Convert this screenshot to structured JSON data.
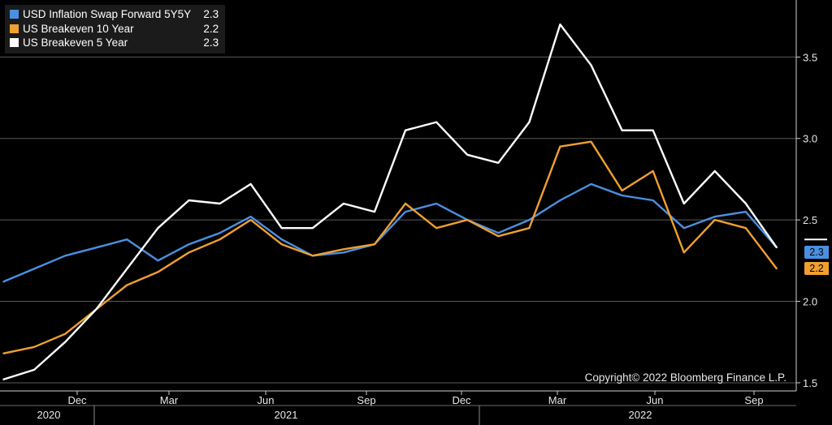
{
  "chart_data": {
    "type": "line",
    "y_axis_side": "right",
    "ylim": [
      1.45,
      3.85
    ],
    "yticks": [
      "1.5",
      "2.0",
      "2.5",
      "3.0",
      "3.5"
    ],
    "grid": true,
    "legend_position": "top-left",
    "x_month_labels": [
      "Dec",
      "Mar",
      "Jun",
      "Sep",
      "Dec",
      "Mar",
      "Jun",
      "Sep"
    ],
    "x_year_labels": [
      "2020",
      "2021",
      "2022"
    ],
    "x": [
      "2020-09",
      "2020-10",
      "2020-11",
      "2020-12",
      "2021-01",
      "2021-02",
      "2021-03",
      "2021-04",
      "2021-05",
      "2021-06",
      "2021-07",
      "2021-08",
      "2021-09",
      "2021-10",
      "2021-11",
      "2021-12",
      "2022-01",
      "2022-02",
      "2022-03",
      "2022-04",
      "2022-05",
      "2022-06",
      "2022-07",
      "2022-08",
      "2022-09",
      "2022-10"
    ],
    "series": [
      {
        "name": "USD Inflation Swap Forward 5Y5Y",
        "color": "#4a90e2",
        "last_value": "2.3",
        "values": [
          2.12,
          2.2,
          2.28,
          2.33,
          2.38,
          2.25,
          2.35,
          2.42,
          2.52,
          2.38,
          2.28,
          2.3,
          2.35,
          2.55,
          2.6,
          2.5,
          2.42,
          2.5,
          2.62,
          2.72,
          2.65,
          2.62,
          2.45,
          2.52,
          2.55,
          2.33
        ]
      },
      {
        "name": "US Breakeven 10 Year",
        "color": "#f0a030",
        "last_value": "2.2",
        "values": [
          1.68,
          1.72,
          1.8,
          1.95,
          2.1,
          2.18,
          2.3,
          2.38,
          2.5,
          2.35,
          2.28,
          2.32,
          2.35,
          2.6,
          2.45,
          2.5,
          2.4,
          2.45,
          2.95,
          2.98,
          2.68,
          2.8,
          2.3,
          2.5,
          2.45,
          2.2
        ]
      },
      {
        "name": "US Breakeven 5 Year",
        "color": "#ffffff",
        "last_value": "2.3",
        "values": [
          1.52,
          1.58,
          1.75,
          1.95,
          2.2,
          2.45,
          2.62,
          2.6,
          2.72,
          2.45,
          2.45,
          2.6,
          2.55,
          3.05,
          3.1,
          2.9,
          2.85,
          3.1,
          3.7,
          3.45,
          3.05,
          3.05,
          2.6,
          2.8,
          2.6,
          2.33
        ]
      }
    ]
  },
  "legend": {
    "items": [
      {
        "name": "USD Inflation Swap Forward 5Y5Y",
        "value": "2.3"
      },
      {
        "name": "US Breakeven 10 Year",
        "value": "2.2"
      },
      {
        "name": "US Breakeven 5 Year",
        "value": "2.3"
      }
    ]
  },
  "copyright": "Copyright© 2022 Bloomberg Finance L.P."
}
